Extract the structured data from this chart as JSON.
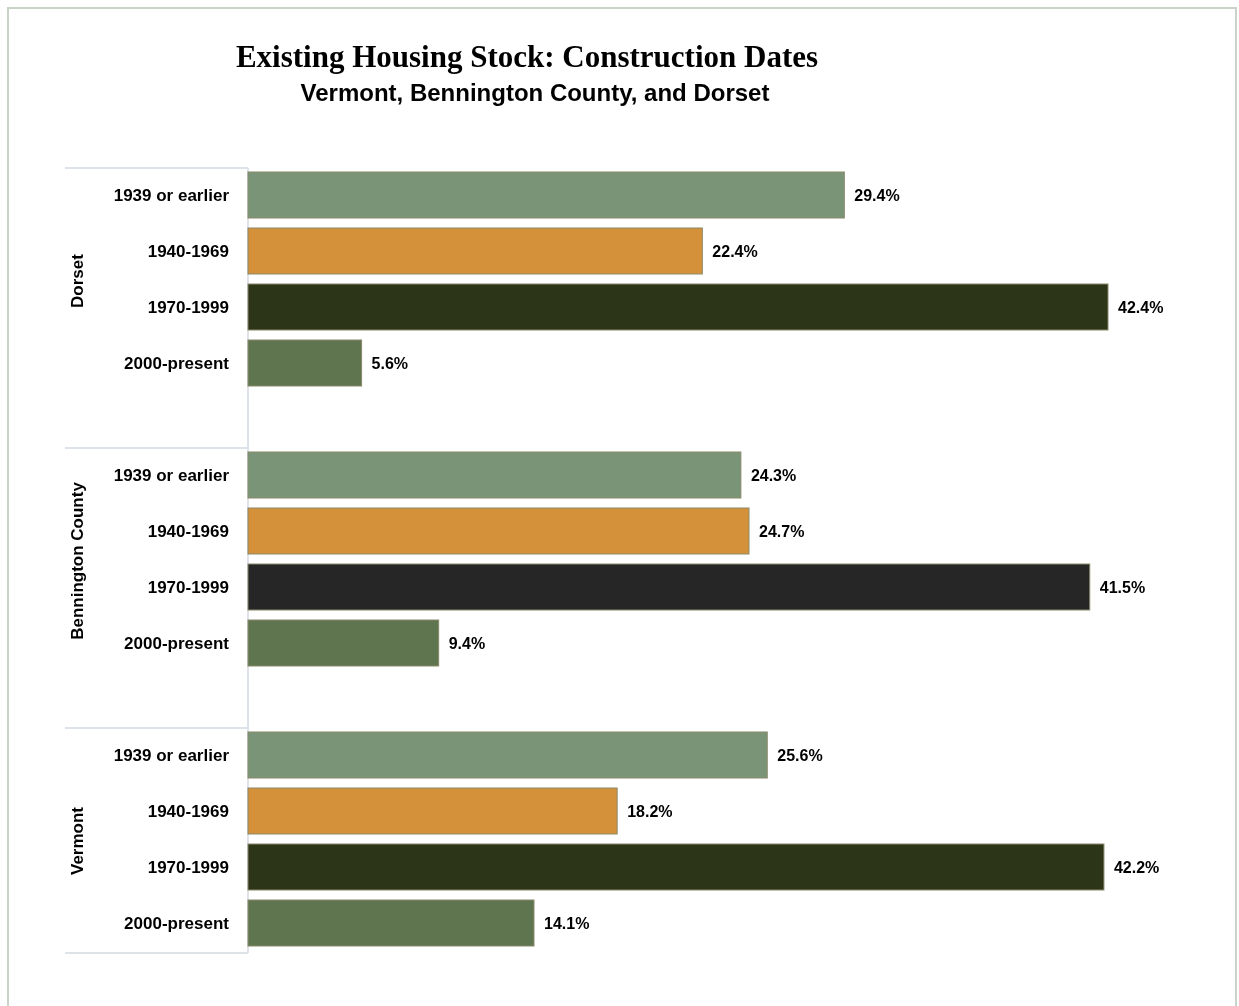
{
  "chart_data": [
    {
      "type": "bar",
      "orientation": "horizontal",
      "title": "Existing Housing Stock: Construction Dates",
      "subtitle": "Vermont, Bennington County, and Dorset",
      "ylabel": "Dorset",
      "categories": [
        "1939 or earlier",
        "1940-1969",
        "1970-1999",
        "2000-present"
      ],
      "values": [
        29.4,
        22.4,
        42.4,
        5.6
      ],
      "colors": [
        "#7a9478",
        "#d4913a",
        "#2c3517",
        "#5e7550"
      ],
      "data_labels": true,
      "value_labels": [
        "29.4%",
        "22.4%",
        "42.4%",
        "5.6%"
      ]
    },
    {
      "type": "bar",
      "orientation": "horizontal",
      "ylabel": "Bennington County",
      "categories": [
        "1939 or earlier",
        "1940-1969",
        "1970-1999",
        "2000-present"
      ],
      "values": [
        24.3,
        24.7,
        41.5,
        9.4
      ],
      "colors": [
        "#7a9478",
        "#d4913a",
        "#262626",
        "#5e7550"
      ],
      "data_labels": true,
      "value_labels": [
        "24.3%",
        "24.7%",
        "41.5%",
        "9.4%"
      ]
    },
    {
      "type": "bar",
      "orientation": "horizontal",
      "ylabel": "Vermont",
      "categories": [
        "1939 or earlier",
        "1940-1969",
        "1970-1999",
        "2000-present"
      ],
      "values": [
        25.6,
        18.2,
        42.2,
        14.1
      ],
      "colors": [
        "#7a9478",
        "#d4913a",
        "#2c3517",
        "#5e7550"
      ],
      "data_labels": true,
      "value_labels": [
        "25.6%",
        "18.2%",
        "42.2%",
        "14.1%"
      ]
    }
  ]
}
